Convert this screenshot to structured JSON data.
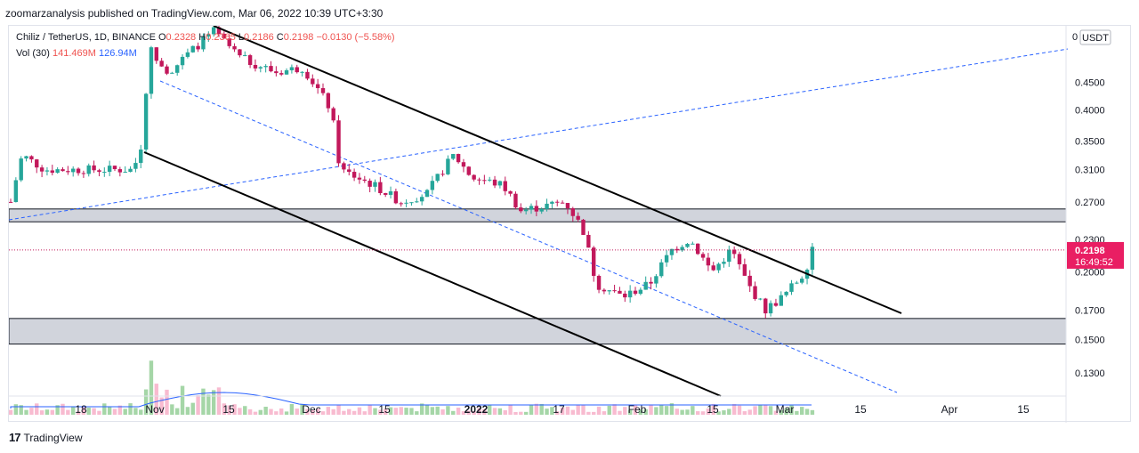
{
  "header": {
    "publisher": "zoomarzanalysis published on TradingView.com, Mar 06, 2022 10:39 UTC+3:30"
  },
  "legend": {
    "symbol": "Chiliz / TetherUS, 1D, BINANCE",
    "open_label": "O",
    "open": "0.2328",
    "high_label": "H",
    "high": "0.2365",
    "low_label": "L",
    "low": "0.2186",
    "close_label": "C",
    "close": "0.2198",
    "change": "−0.0130 (−5.58%)",
    "vol_label": "Vol (30)",
    "vol": "141.469M",
    "vol_ma": "126.94M"
  },
  "footer": {
    "brand": "TradingView"
  },
  "chart_data": {
    "type": "candlestick",
    "currency": "USDT",
    "price_axis_ticks": [
      "0.4500",
      "0.4000",
      "0.3500",
      "0.3100",
      "0.2700",
      "0.2300",
      "0.2000",
      "0.1700",
      "0.1500",
      "0.1300"
    ],
    "time_axis_ticks": [
      "18",
      "Nov",
      "15",
      "Dec",
      "15",
      "2022",
      "17",
      "Feb",
      "15",
      "Mar",
      "15",
      "Apr",
      "15"
    ],
    "last_price_label": "0.2198",
    "countdown_label": "16:49:52",
    "zones": [
      {
        "from": 0.248,
        "to": 0.262,
        "color": "#d1d4dc"
      },
      {
        "from": 0.147,
        "to": 0.164,
        "color": "#d1d4dc"
      }
    ],
    "colors": {
      "up": "#26a69a",
      "down": "#c2185b",
      "trendline": "#000000",
      "dashed": "#2962ff"
    }
  }
}
